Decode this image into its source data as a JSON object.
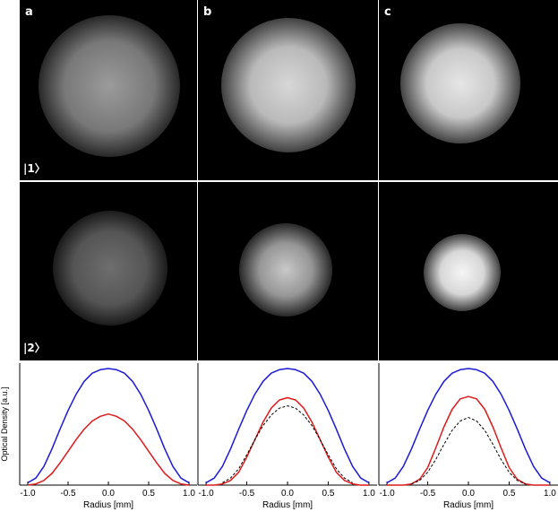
{
  "panel_labels": [
    "a",
    "b",
    "c"
  ],
  "state_labels": [
    "|1〉",
    "|2〉"
  ],
  "colors": {
    "state1": "#1a1ad8",
    "state2": "#dd1a1a",
    "reference": "#000000"
  },
  "chart_data": [
    {
      "type": "line",
      "xlabel": "Radius [mm]",
      "ylabel": "Optical Density [a.u.]",
      "xlim": [
        -1.1,
        1.1
      ],
      "xticks": [
        "-1.0",
        "-0.5",
        "0.0",
        "0.5",
        "1.0"
      ],
      "series": [
        {
          "color": "#1a1ad8",
          "x": [
            -1.0,
            -0.9,
            -0.8,
            -0.7,
            -0.6,
            -0.5,
            -0.4,
            -0.3,
            -0.2,
            -0.1,
            0.0,
            0.1,
            0.2,
            0.3,
            0.4,
            0.5,
            0.6,
            0.7,
            0.8,
            0.9,
            1.0
          ],
          "y": [
            0.02,
            0.06,
            0.16,
            0.31,
            0.48,
            0.64,
            0.78,
            0.89,
            0.96,
            0.99,
            1.0,
            0.99,
            0.96,
            0.89,
            0.78,
            0.64,
            0.48,
            0.31,
            0.16,
            0.06,
            0.02
          ]
        },
        {
          "color": "#dd1a1a",
          "x": [
            -1.0,
            -0.9,
            -0.8,
            -0.7,
            -0.6,
            -0.5,
            -0.4,
            -0.3,
            -0.2,
            -0.1,
            0.0,
            0.1,
            0.2,
            0.3,
            0.4,
            0.5,
            0.6,
            0.7,
            0.8,
            0.9,
            1.0
          ],
          "y": [
            0.0,
            0.01,
            0.04,
            0.1,
            0.19,
            0.29,
            0.39,
            0.48,
            0.55,
            0.59,
            0.61,
            0.59,
            0.55,
            0.48,
            0.39,
            0.29,
            0.19,
            0.1,
            0.04,
            0.01,
            0.0
          ]
        }
      ]
    },
    {
      "type": "line",
      "xlabel": "Radius [mm]",
      "xlim": [
        -1.1,
        1.1
      ],
      "xticks": [
        "-1.0",
        "-0.5",
        "0.0",
        "0.5",
        "1.0"
      ],
      "series": [
        {
          "color": "#1a1ad8",
          "x": [
            -1.0,
            -0.9,
            -0.8,
            -0.7,
            -0.6,
            -0.5,
            -0.4,
            -0.3,
            -0.2,
            -0.1,
            0.0,
            0.1,
            0.2,
            0.3,
            0.4,
            0.5,
            0.6,
            0.7,
            0.8,
            0.9,
            1.0
          ],
          "y": [
            0.02,
            0.06,
            0.16,
            0.31,
            0.48,
            0.64,
            0.78,
            0.89,
            0.96,
            0.99,
            1.0,
            0.99,
            0.96,
            0.89,
            0.78,
            0.64,
            0.48,
            0.31,
            0.16,
            0.06,
            0.02
          ]
        },
        {
          "color": "#dd1a1a",
          "x": [
            -1.0,
            -0.9,
            -0.8,
            -0.7,
            -0.6,
            -0.5,
            -0.4,
            -0.3,
            -0.2,
            -0.1,
            0.0,
            0.1,
            0.2,
            0.3,
            0.4,
            0.5,
            0.6,
            0.7,
            0.8,
            0.9,
            1.0
          ],
          "y": [
            0.0,
            0.0,
            0.01,
            0.04,
            0.11,
            0.24,
            0.39,
            0.54,
            0.66,
            0.73,
            0.75,
            0.73,
            0.66,
            0.54,
            0.39,
            0.24,
            0.11,
            0.04,
            0.01,
            0.0,
            0.0
          ]
        },
        {
          "color": "#000000",
          "dashed": true,
          "x": [
            -0.8,
            -0.7,
            -0.6,
            -0.5,
            -0.4,
            -0.3,
            -0.2,
            -0.1,
            0.0,
            0.1,
            0.2,
            0.3,
            0.4,
            0.5,
            0.6,
            0.7,
            0.8
          ],
          "y": [
            0.02,
            0.06,
            0.14,
            0.26,
            0.39,
            0.51,
            0.6,
            0.66,
            0.68,
            0.66,
            0.6,
            0.51,
            0.39,
            0.26,
            0.14,
            0.06,
            0.02
          ]
        }
      ]
    },
    {
      "type": "line",
      "xlabel": "Radius [mm]",
      "xlim": [
        -1.1,
        1.1
      ],
      "xticks": [
        "-1.0",
        "-0.5",
        "0.0",
        "0.5",
        "1.0"
      ],
      "series": [
        {
          "color": "#1a1ad8",
          "x": [
            -1.0,
            -0.9,
            -0.8,
            -0.7,
            -0.6,
            -0.5,
            -0.4,
            -0.3,
            -0.2,
            -0.1,
            0.0,
            0.1,
            0.2,
            0.3,
            0.4,
            0.5,
            0.6,
            0.7,
            0.8,
            0.9,
            1.0
          ],
          "y": [
            0.02,
            0.06,
            0.16,
            0.31,
            0.48,
            0.64,
            0.78,
            0.89,
            0.96,
            0.99,
            1.0,
            0.99,
            0.96,
            0.89,
            0.78,
            0.64,
            0.48,
            0.31,
            0.16,
            0.06,
            0.02
          ]
        },
        {
          "color": "#dd1a1a",
          "x": [
            -1.0,
            -0.9,
            -0.8,
            -0.7,
            -0.6,
            -0.5,
            -0.4,
            -0.3,
            -0.2,
            -0.1,
            0.0,
            0.1,
            0.2,
            0.3,
            0.4,
            0.5,
            0.6,
            0.7,
            0.8,
            0.9,
            1.0
          ],
          "y": [
            0.0,
            0.0,
            0.0,
            0.01,
            0.05,
            0.15,
            0.32,
            0.5,
            0.65,
            0.74,
            0.76,
            0.74,
            0.65,
            0.5,
            0.32,
            0.15,
            0.05,
            0.01,
            0.0,
            0.0,
            0.0
          ]
        },
        {
          "color": "#000000",
          "dashed": true,
          "x": [
            -0.7,
            -0.6,
            -0.5,
            -0.4,
            -0.3,
            -0.2,
            -0.1,
            0.0,
            0.1,
            0.2,
            0.3,
            0.4,
            0.5,
            0.6,
            0.7
          ],
          "y": [
            0.01,
            0.04,
            0.11,
            0.22,
            0.35,
            0.47,
            0.55,
            0.58,
            0.55,
            0.47,
            0.35,
            0.22,
            0.11,
            0.04,
            0.01
          ]
        }
      ]
    }
  ]
}
